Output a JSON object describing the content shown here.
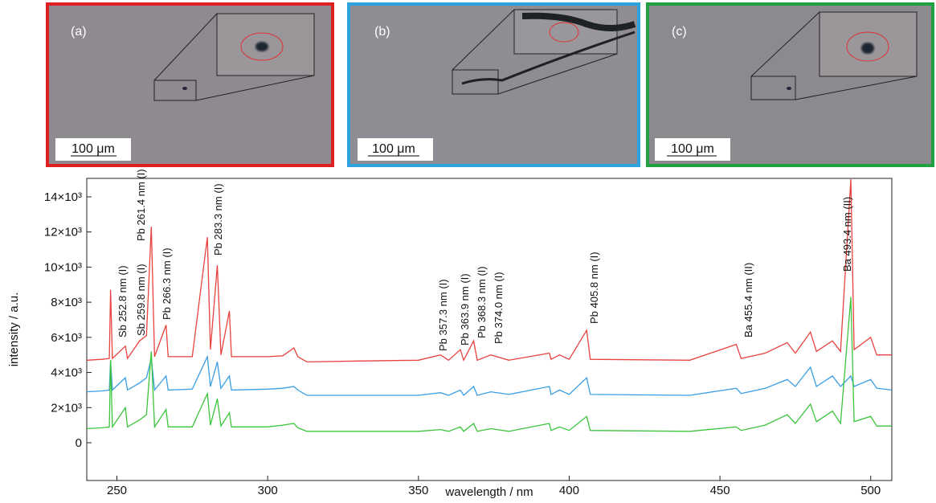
{
  "images": [
    {
      "label": "(a)",
      "scale": "100 μm"
    },
    {
      "label": "(b)",
      "scale": "100 μm"
    },
    {
      "label": "(c)",
      "scale": "100 μm"
    }
  ],
  "chart_data": {
    "type": "line",
    "x_label": "wavelength / nm",
    "y_label": "intensity / a.u.",
    "x": [
      240,
      245,
      247.5,
      247.9,
      248.5,
      252.8,
      253.5,
      257.5,
      259.8,
      261.4,
      262.5,
      266.3,
      267,
      275,
      280,
      281,
      283.3,
      284.5,
      287.3,
      288,
      300,
      305,
      308.7,
      310,
      313,
      330,
      350,
      357.3,
      360,
      363.9,
      365,
      368.3,
      369.5,
      374,
      380,
      393.4,
      394,
      396.8,
      400,
      405.8,
      407,
      440,
      455.4,
      457,
      465,
      472.3,
      475,
      480,
      482,
      487.3,
      490,
      493.4,
      494.5,
      500,
      502,
      507
    ],
    "series": [
      {
        "color": "#e8423f",
        "values": [
          4700,
          4750,
          4800,
          8700,
          4800,
          5500,
          4800,
          5800,
          6100,
          12300,
          4900,
          6700,
          4900,
          4900,
          11700,
          5300,
          10100,
          5000,
          7500,
          4900,
          4900,
          4950,
          5400,
          4900,
          4600,
          4650,
          4700,
          5000,
          4700,
          5300,
          4700,
          5800,
          4700,
          5000,
          4700,
          5100,
          4750,
          5000,
          4750,
          6400,
          4750,
          4700,
          5600,
          4800,
          5100,
          5700,
          5100,
          6300,
          5200,
          5800,
          5200,
          15000,
          5300,
          6000,
          5000,
          5000
        ]
      },
      {
        "color": "#3a9ee4",
        "values": [
          2900,
          2950,
          3000,
          4700,
          3000,
          3700,
          3000,
          3400,
          3700,
          4800,
          3000,
          3800,
          3000,
          3050,
          4900,
          3200,
          4600,
          3100,
          3800,
          3000,
          3050,
          3100,
          3200,
          3000,
          2700,
          2700,
          2700,
          2850,
          2700,
          3000,
          2700,
          3200,
          2700,
          2900,
          2750,
          3200,
          2750,
          3000,
          2750,
          3700,
          2750,
          2700,
          3100,
          2800,
          3100,
          3600,
          3200,
          4300,
          3200,
          3800,
          3200,
          3800,
          3200,
          3600,
          3100,
          3000
        ]
      },
      {
        "color": "#3cc43c",
        "values": [
          800,
          850,
          900,
          4700,
          900,
          2000,
          900,
          1300,
          1600,
          5200,
          900,
          1900,
          900,
          900,
          2800,
          1000,
          2500,
          950,
          1700,
          900,
          900,
          1000,
          1100,
          850,
          650,
          650,
          650,
          750,
          650,
          900,
          650,
          1100,
          650,
          800,
          650,
          1100,
          700,
          900,
          700,
          1500,
          700,
          650,
          900,
          700,
          1000,
          1600,
          1100,
          2200,
          1200,
          1800,
          1100,
          8300,
          1200,
          1500,
          950,
          950
        ]
      }
    ],
    "xlim": [
      240,
      507
    ],
    "ylim": [
      -2150,
      15050
    ],
    "xticks": [
      250,
      300,
      350,
      400,
      450,
      500
    ],
    "yticks": [
      0,
      {
        "value": 2000,
        "label": "2×10³"
      },
      {
        "value": 4000,
        "label": "4×10³"
      },
      {
        "value": 6000,
        "label": "6×10³"
      },
      {
        "value": 8000,
        "label": "8×10³"
      },
      {
        "value": 10000,
        "label": "10×10³"
      },
      {
        "value": 12000,
        "label": "12×10³"
      },
      {
        "value": 14000,
        "label": "14×10³"
      }
    ],
    "annotations": [
      "Sb 252.8 nm (I)",
      "Sb 259.8 nm (I)",
      "Pb 261.4 nm (I)",
      "Pb 266.3 nm (I)",
      "Pb 283.3 nm (I)",
      "Pb 357.3 nm (I)",
      "Pb 363.9 nm (I)",
      "Pb 368.3 nm (I)",
      "Pb 374.0 nm (I)",
      "Pb 405.8 nm (I)",
      "Ba 455.4 nm (II)",
      "Ba 493.4 nm (II)"
    ]
  }
}
